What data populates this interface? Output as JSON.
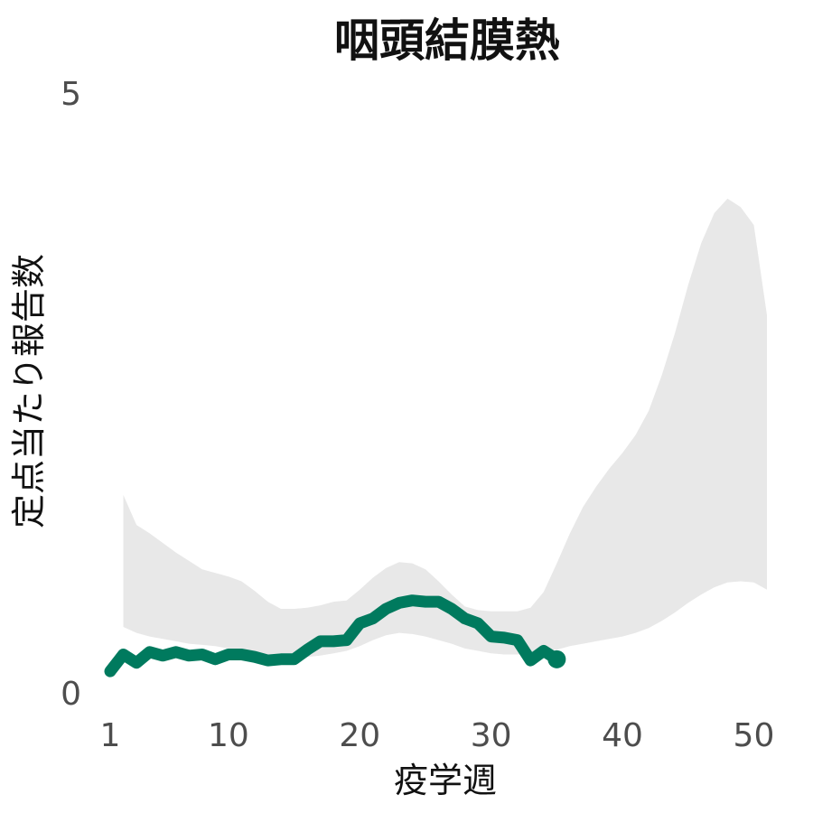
{
  "chart_data": {
    "type": "line",
    "title": "咽頭結膜熱",
    "xlabel": "疫学週",
    "ylabel": "定点当たり報告数",
    "xlim": [
      1,
      51
    ],
    "ylim": [
      0,
      5
    ],
    "x_ticks": [
      1,
      10,
      20,
      30,
      40,
      50
    ],
    "y_ticks": [
      0,
      5
    ],
    "grid": false,
    "legend": "none",
    "colors": {
      "line": "#007a5e",
      "band": "#e8e8e8",
      "tick_text": "#4d4d4d",
      "title": "#111111"
    },
    "series": [
      {
        "x": [
          1,
          2,
          3,
          4,
          5,
          6,
          7,
          8,
          9,
          10,
          11,
          12,
          13,
          14,
          15,
          16,
          17,
          18,
          19,
          20,
          21,
          22,
          23,
          24,
          25,
          26,
          27,
          28,
          29,
          30,
          31,
          32,
          33,
          34,
          35
        ],
        "y": [
          0.18,
          0.32,
          0.25,
          0.34,
          0.31,
          0.34,
          0.31,
          0.32,
          0.28,
          0.32,
          0.32,
          0.3,
          0.27,
          0.28,
          0.28,
          0.36,
          0.43,
          0.43,
          0.44,
          0.58,
          0.62,
          0.7,
          0.75,
          0.77,
          0.76,
          0.76,
          0.7,
          0.62,
          0.58,
          0.47,
          0.46,
          0.44,
          0.27,
          0.35,
          0.28
        ]
      }
    ],
    "band": {
      "x": [
        2,
        3,
        4,
        5,
        6,
        7,
        8,
        9,
        10,
        11,
        12,
        13,
        14,
        15,
        16,
        17,
        18,
        19,
        20,
        21,
        22,
        23,
        24,
        25,
        26,
        27,
        28,
        29,
        30,
        31,
        32,
        33,
        34,
        35,
        36,
        37,
        38,
        39,
        40,
        41,
        42,
        43,
        44,
        45,
        46,
        47,
        48,
        49,
        50,
        51
      ],
      "upper": [
        1.65,
        1.4,
        1.33,
        1.25,
        1.17,
        1.1,
        1.03,
        1.0,
        0.97,
        0.93,
        0.85,
        0.76,
        0.7,
        0.7,
        0.71,
        0.73,
        0.76,
        0.77,
        0.86,
        0.96,
        1.04,
        1.09,
        1.08,
        1.03,
        0.93,
        0.82,
        0.72,
        0.69,
        0.68,
        0.68,
        0.68,
        0.71,
        0.84,
        1.08,
        1.33,
        1.55,
        1.72,
        1.87,
        2.0,
        2.15,
        2.35,
        2.65,
        3.0,
        3.4,
        3.75,
        4.0,
        4.12,
        4.05,
        3.9,
        3.15
      ],
      "lower": [
        0.55,
        0.5,
        0.47,
        0.45,
        0.43,
        0.41,
        0.4,
        0.39,
        0.37,
        0.35,
        0.33,
        0.3,
        0.29,
        0.29,
        0.3,
        0.31,
        0.33,
        0.35,
        0.39,
        0.44,
        0.48,
        0.5,
        0.49,
        0.47,
        0.44,
        0.41,
        0.37,
        0.35,
        0.33,
        0.32,
        0.32,
        0.33,
        0.35,
        0.36,
        0.39,
        0.41,
        0.43,
        0.45,
        0.47,
        0.5,
        0.54,
        0.6,
        0.67,
        0.75,
        0.82,
        0.88,
        0.92,
        0.93,
        0.92,
        0.86
      ]
    }
  }
}
